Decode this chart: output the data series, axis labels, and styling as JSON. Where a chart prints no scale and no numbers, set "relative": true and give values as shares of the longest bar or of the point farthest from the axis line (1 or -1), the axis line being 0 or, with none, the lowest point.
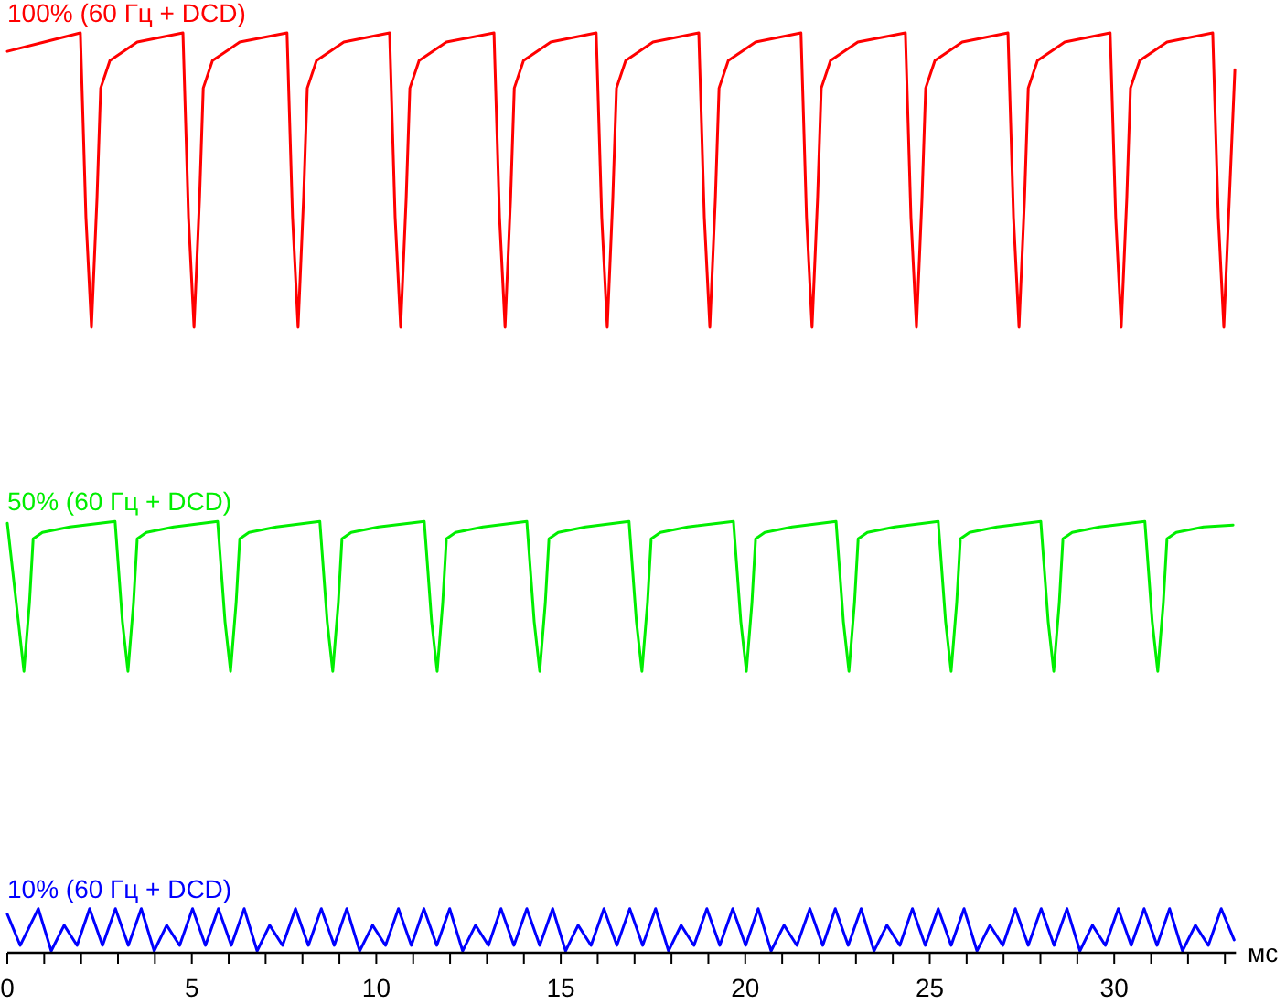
{
  "chart_data": {
    "type": "line",
    "relative": true,
    "xlabel": "мс",
    "xlim": [
      0,
      33.3
    ],
    "xticks": [
      0,
      {
        "value": 1,
        "label": null
      },
      {
        "value": 2,
        "label": null
      },
      {
        "value": 3,
        "label": null
      },
      {
        "value": 4,
        "label": null
      },
      5,
      {
        "value": 6,
        "label": null
      },
      {
        "value": 7,
        "label": null
      },
      {
        "value": 8,
        "label": null
      },
      {
        "value": 9,
        "label": null
      },
      10,
      {
        "value": 11,
        "label": null
      },
      {
        "value": 12,
        "label": null
      },
      {
        "value": 13,
        "label": null
      },
      {
        "value": 14,
        "label": null
      },
      15,
      {
        "value": 16,
        "label": null
      },
      {
        "value": 17,
        "label": null
      },
      {
        "value": 18,
        "label": null
      },
      {
        "value": 19,
        "label": null
      },
      20,
      {
        "value": 21,
        "label": null
      },
      {
        "value": 22,
        "label": null
      },
      {
        "value": 23,
        "label": null
      },
      {
        "value": 24,
        "label": null
      },
      25,
      {
        "value": 26,
        "label": null
      },
      {
        "value": 27,
        "label": null
      },
      {
        "value": 28,
        "label": null
      },
      {
        "value": 29,
        "label": null
      },
      30,
      {
        "value": 31,
        "label": null
      },
      {
        "value": 32,
        "label": null
      },
      {
        "value": 33,
        "label": null
      }
    ],
    "grid": false,
    "marker": "none",
    "line_style": "solid",
    "series": [
      {
        "name": "100% (60 Гц + DCD)",
        "color": "#ff0000",
        "x": [
          0,
          1.0,
          1.98,
          2.13,
          2.28,
          2.43,
          2.53,
          2.78,
          3.52,
          4.76,
          4.91,
          5.06,
          5.21,
          5.31,
          5.56,
          6.3,
          7.58,
          7.73,
          7.88,
          8.03,
          8.13,
          8.38,
          9.12,
          10.36,
          10.51,
          10.66,
          10.81,
          10.91,
          11.16,
          11.9,
          13.19,
          13.34,
          13.49,
          13.64,
          13.74,
          13.99,
          14.73,
          15.96,
          16.11,
          16.26,
          16.41,
          16.51,
          16.76,
          17.5,
          18.74,
          18.89,
          19.04,
          19.19,
          19.29,
          19.54,
          20.28,
          21.51,
          21.66,
          21.81,
          21.96,
          22.06,
          22.31,
          23.05,
          24.34,
          24.49,
          24.64,
          24.79,
          24.89,
          25.14,
          25.88,
          27.12,
          27.27,
          27.42,
          27.57,
          27.67,
          27.92,
          28.66,
          29.89,
          30.04,
          30.19,
          30.34,
          30.44,
          30.69,
          31.43,
          32.67,
          32.82,
          32.97,
          33.12,
          33.27
        ],
        "values": [
          0.98,
          0.99,
          1.0,
          0.8,
          0.68,
          0.82,
          0.94,
          0.97,
          0.99,
          1.0,
          0.8,
          0.68,
          0.82,
          0.94,
          0.97,
          0.99,
          1.0,
          0.8,
          0.68,
          0.82,
          0.94,
          0.97,
          0.99,
          1.0,
          0.8,
          0.68,
          0.82,
          0.94,
          0.97,
          0.99,
          1.0,
          0.8,
          0.68,
          0.82,
          0.94,
          0.97,
          0.99,
          1.0,
          0.8,
          0.68,
          0.82,
          0.94,
          0.97,
          0.99,
          1.0,
          0.8,
          0.68,
          0.82,
          0.94,
          0.97,
          0.99,
          1.0,
          0.8,
          0.68,
          0.82,
          0.94,
          0.97,
          0.99,
          1.0,
          0.8,
          0.68,
          0.82,
          0.94,
          0.97,
          0.99,
          1.0,
          0.8,
          0.68,
          0.82,
          0.94,
          0.97,
          0.99,
          1.0,
          0.8,
          0.68,
          0.82,
          0.94,
          0.97,
          0.99,
          1.0,
          0.8,
          0.68,
          0.82,
          0.96
        ]
      },
      {
        "name": "50% (60 Гц + DCD)",
        "color": "#00ee00",
        "x": [
          0,
          0.3,
          0.45,
          0.6,
          0.7,
          0.95,
          1.69,
          2.92,
          3.12,
          3.27,
          3.42,
          3.52,
          3.77,
          4.51,
          5.7,
          5.9,
          6.05,
          6.2,
          6.3,
          6.55,
          7.29,
          8.47,
          8.67,
          8.82,
          8.97,
          9.07,
          9.32,
          10.06,
          11.3,
          11.5,
          11.65,
          11.8,
          11.9,
          12.15,
          12.89,
          14.08,
          14.28,
          14.43,
          14.58,
          14.68,
          14.93,
          15.67,
          16.85,
          17.05,
          17.2,
          17.35,
          17.45,
          17.7,
          18.44,
          19.68,
          19.88,
          20.03,
          20.18,
          20.28,
          20.53,
          21.27,
          22.46,
          22.66,
          22.81,
          22.96,
          23.06,
          23.31,
          24.05,
          25.23,
          25.43,
          25.58,
          25.73,
          25.83,
          26.08,
          26.82,
          28.01,
          28.21,
          28.36,
          28.51,
          28.61,
          28.86,
          29.6,
          30.83,
          31.03,
          31.18,
          31.33,
          31.43,
          31.68,
          32.42,
          33.22
        ],
        "values": [
          0.467,
          0.36,
          0.306,
          0.38,
          0.45,
          0.457,
          0.463,
          0.469,
          0.36,
          0.306,
          0.38,
          0.45,
          0.457,
          0.463,
          0.469,
          0.36,
          0.306,
          0.38,
          0.45,
          0.457,
          0.463,
          0.469,
          0.36,
          0.306,
          0.38,
          0.45,
          0.457,
          0.463,
          0.469,
          0.36,
          0.306,
          0.38,
          0.45,
          0.457,
          0.463,
          0.469,
          0.36,
          0.306,
          0.38,
          0.45,
          0.457,
          0.463,
          0.469,
          0.36,
          0.306,
          0.38,
          0.45,
          0.457,
          0.463,
          0.469,
          0.36,
          0.306,
          0.38,
          0.45,
          0.457,
          0.463,
          0.469,
          0.36,
          0.306,
          0.38,
          0.45,
          0.457,
          0.463,
          0.469,
          0.36,
          0.306,
          0.38,
          0.45,
          0.457,
          0.463,
          0.469,
          0.36,
          0.306,
          0.38,
          0.45,
          0.457,
          0.463,
          0.469,
          0.36,
          0.306,
          0.38,
          0.45,
          0.457,
          0.463,
          0.465
        ]
      },
      {
        "name": "10% (60 Гц + DCD)",
        "color": "#0000ff",
        "x": [
          0,
          0.35,
          0.84,
          1.19,
          1.54,
          1.89,
          2.23,
          2.58,
          2.93,
          3.28,
          3.63,
          3.98,
          4.32,
          4.67,
          5.02,
          5.37,
          5.72,
          6.07,
          6.42,
          6.77,
          7.11,
          7.46,
          7.81,
          8.16,
          8.51,
          8.86,
          9.2,
          9.55,
          9.9,
          10.25,
          10.6,
          10.95,
          11.29,
          11.64,
          11.99,
          12.34,
          12.69,
          13.04,
          13.38,
          13.73,
          14.08,
          14.43,
          14.78,
          15.13,
          15.47,
          15.82,
          16.17,
          16.52,
          16.87,
          17.22,
          17.57,
          17.92,
          18.26,
          18.61,
          18.96,
          19.31,
          19.66,
          20.01,
          20.35,
          20.7,
          21.05,
          21.4,
          21.75,
          22.1,
          22.44,
          22.79,
          23.14,
          23.49,
          23.84,
          24.19,
          24.53,
          24.88,
          25.23,
          25.58,
          25.93,
          26.28,
          26.63,
          26.98,
          27.32,
          27.67,
          28.02,
          28.37,
          28.72,
          29.07,
          29.41,
          29.76,
          30.11,
          30.46,
          30.81,
          31.16,
          31.5,
          31.85,
          32.2,
          32.55,
          32.9,
          33.25
        ],
        "values": [
          0.042,
          0.008,
          0.048,
          0.002,
          0.03,
          0.008,
          0.048,
          0.008,
          0.048,
          0.008,
          0.048,
          0.002,
          0.03,
          0.008,
          0.048,
          0.008,
          0.048,
          0.008,
          0.048,
          0.002,
          0.03,
          0.008,
          0.048,
          0.008,
          0.048,
          0.008,
          0.048,
          0.002,
          0.03,
          0.008,
          0.048,
          0.008,
          0.048,
          0.008,
          0.048,
          0.002,
          0.03,
          0.008,
          0.048,
          0.008,
          0.048,
          0.008,
          0.048,
          0.002,
          0.03,
          0.008,
          0.048,
          0.008,
          0.048,
          0.008,
          0.048,
          0.002,
          0.03,
          0.008,
          0.048,
          0.008,
          0.048,
          0.008,
          0.048,
          0.002,
          0.03,
          0.008,
          0.048,
          0.008,
          0.048,
          0.008,
          0.048,
          0.002,
          0.03,
          0.008,
          0.048,
          0.008,
          0.048,
          0.008,
          0.048,
          0.002,
          0.03,
          0.008,
          0.048,
          0.008,
          0.048,
          0.008,
          0.048,
          0.002,
          0.03,
          0.008,
          0.048,
          0.008,
          0.048,
          0.008,
          0.048,
          0.002,
          0.03,
          0.008,
          0.048,
          0.014
        ]
      }
    ]
  }
}
